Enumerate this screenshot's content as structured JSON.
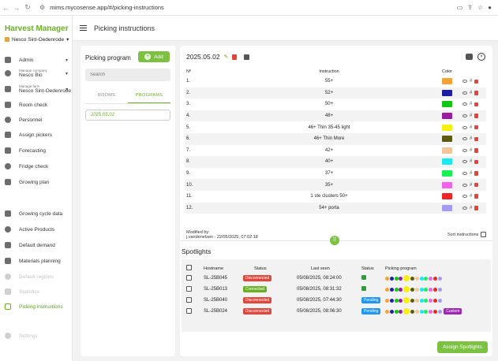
{
  "browser": {
    "url": "mims.mycosense.app/#/picking-instructions"
  },
  "sidebar": {
    "brand": "Harvest Manager",
    "farm": "Nesco Sint-Oedenrode",
    "items": [
      {
        "label": "Admin",
        "sub": "",
        "icon": "person-icon",
        "caret": true,
        "state": "normal"
      },
      {
        "label": "Nesco Bio",
        "sub": "Manage company",
        "icon": "building-icon",
        "caret": true,
        "state": "normal"
      },
      {
        "label": "Nesco Sint-Oedenrode",
        "sub": "Manage farm",
        "icon": "farm-icon",
        "caret": true,
        "state": "normal"
      },
      {
        "label": "Room check",
        "sub": "",
        "icon": "checklist-icon",
        "caret": false,
        "state": "normal"
      },
      {
        "label": "Personnel",
        "sub": "",
        "icon": "people-icon",
        "caret": false,
        "state": "normal"
      },
      {
        "label": "Assign pickers",
        "sub": "",
        "icon": "user-assign-icon",
        "caret": false,
        "state": "normal"
      },
      {
        "label": "Forecasting",
        "sub": "",
        "icon": "bulb-icon",
        "caret": false,
        "state": "normal"
      },
      {
        "label": "Fridge check",
        "sub": "",
        "icon": "fridge-icon",
        "caret": false,
        "state": "normal"
      },
      {
        "label": "Growing plan",
        "sub": "",
        "icon": "plan-icon",
        "caret": false,
        "state": "normal"
      },
      {
        "label": "Growing cycle data",
        "sub": "",
        "icon": "cycle-icon",
        "caret": false,
        "state": "normal"
      },
      {
        "label": "Active Products",
        "sub": "",
        "icon": "box-icon",
        "caret": false,
        "state": "normal"
      },
      {
        "label": "Default demand",
        "sub": "",
        "icon": "demand-icon",
        "caret": false,
        "state": "normal"
      },
      {
        "label": "Materials planning",
        "sub": "",
        "icon": "materials-icon",
        "caret": false,
        "state": "normal"
      },
      {
        "label": "Default regions",
        "sub": "",
        "icon": "regions-icon",
        "caret": false,
        "state": "disabled"
      },
      {
        "label": "Statistics",
        "sub": "",
        "icon": "pie-chart-icon",
        "caret": false,
        "state": "disabled"
      },
      {
        "label": "Picking instructions",
        "sub": "",
        "icon": "picking-icon",
        "caret": false,
        "state": "active"
      },
      {
        "label": "Settings",
        "sub": "",
        "icon": "gear-icon",
        "caret": false,
        "state": "disabled"
      }
    ]
  },
  "header": {
    "title": "Picking instructions"
  },
  "left_panel": {
    "title": "Picking program",
    "add_label": "Add",
    "search_placeholder": "Search",
    "tabs": [
      "ROOMS",
      "PROGRAMS"
    ],
    "programs": [
      "2025.05.02"
    ]
  },
  "program": {
    "name": "2025.05.02",
    "columns": {
      "no": "Nº",
      "instruction": "Instruction",
      "color": "Color"
    },
    "rows": [
      {
        "no": "1.",
        "instruction": "55+",
        "color": "#f7a234"
      },
      {
        "no": "2.",
        "instruction": "52+",
        "color": "#1e20a4"
      },
      {
        "no": "3.",
        "instruction": "50+",
        "color": "#13c614"
      },
      {
        "no": "4.",
        "instruction": "48+",
        "color": "#9c1ba3"
      },
      {
        "no": "5.",
        "instruction": "46+ Thin 35-45 light",
        "color": "#f6ef12"
      },
      {
        "no": "6.",
        "instruction": "46+ Thin More",
        "color": "#5d5a11"
      },
      {
        "no": "7.",
        "instruction": "42+",
        "color": "#f3c69a"
      },
      {
        "no": "8.",
        "instruction": "40+",
        "color": "#18eaf2"
      },
      {
        "no": "9.",
        "instruction": "37+",
        "color": "#1bf055"
      },
      {
        "no": "10.",
        "instruction": "35+",
        "color": "#f461ea"
      },
      {
        "no": "11.",
        "instruction": "1 ste clusters 50+",
        "color": "#ec2525"
      },
      {
        "no": "12.",
        "instruction": "54+ porta",
        "color": "#a29cf0"
      }
    ],
    "modified_label": "Modified by:",
    "modified_value": "j.vandenelsen - 22/05/2025, 07:02:18",
    "sort_label": "Sort instructions"
  },
  "spotlights": {
    "title": "Spotlights",
    "columns": [
      "Hostname",
      "Status",
      "Last seen",
      "Status",
      "Picking program"
    ],
    "rows": [
      {
        "host": "SL-25B045",
        "status": "Disconnected",
        "status_color": "#e0463c",
        "last_seen": "05/08/2025, 08:24:00",
        "state": "",
        "state_color": "#2e9e3c",
        "dots": [
          "#f7a234",
          "#1e20a4",
          "#13c614",
          "#9c1ba3",
          "#f6ef12",
          "#5d5a11",
          "#f3c69a",
          "#18eaf2",
          "#1bf055",
          "#f461ea",
          "#ec2525",
          "#a29cf0"
        ],
        "custom": ""
      },
      {
        "host": "SL-25B013",
        "status": "Connected",
        "status_color": "#6ab023",
        "last_seen": "05/08/2025, 08:31:32",
        "state": "",
        "state_color": "#2e9e3c",
        "dots": [
          "#f7a234",
          "#1e20a4",
          "#13c614",
          "#9c1ba3",
          "#f6ef12",
          "#5d5a11",
          "#f3c69a",
          "#18eaf2",
          "#1bf055",
          "#f461ea",
          "#ec2525",
          "#a29cf0"
        ],
        "custom": ""
      },
      {
        "host": "SL-25B040",
        "status": "Disconnected",
        "status_color": "#e0463c",
        "last_seen": "05/08/2025, 07:44:30",
        "state": "Pending",
        "state_color": "#2196f3",
        "dots": [
          "#f7a234",
          "#1e20a4",
          "#13c614",
          "#9c1ba3",
          "#f6ef12",
          "#5d5a11",
          "#f3c69a",
          "#18eaf2",
          "#1bf055",
          "#f461ea",
          "#ec2525",
          "#a29cf0"
        ],
        "custom": ""
      },
      {
        "host": "SL-25B024",
        "status": "Disconnected",
        "status_color": "#e0463c",
        "last_seen": "05/08/2025, 08:06:30",
        "state": "Pending",
        "state_color": "#2196f3",
        "dots": [
          "#f7a234",
          "#1e20a4",
          "#13c614",
          "#9c1ba3",
          "#f6ef12",
          "#5d5a11",
          "#f3c69a",
          "#18eaf2",
          "#1bf055",
          "#f461ea",
          "#ec2525",
          "#a29cf0"
        ],
        "custom": "Custom"
      }
    ],
    "assign_label": "Assign Spotlights"
  }
}
